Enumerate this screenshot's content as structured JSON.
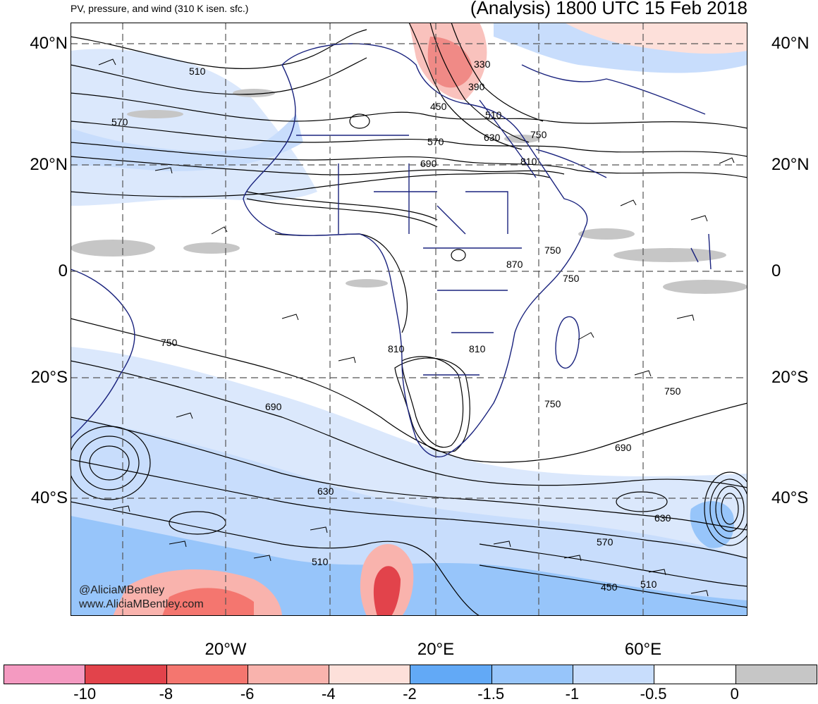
{
  "header": {
    "subtitle": "PV, pressure, and wind (310 K isen. sfc.)",
    "title": "(Analysis) 1800 UTC 15 Feb 2018"
  },
  "map": {
    "lat_labels": [
      "40°N",
      "20°N",
      "0",
      "20°S",
      "40°S"
    ],
    "lon_labels": [
      "20°W",
      "20°E",
      "60°E"
    ],
    "contour_labels": [
      "510",
      "570",
      "330",
      "390",
      "450",
      "510",
      "570",
      "630",
      "750",
      "690",
      "810",
      "750",
      "870",
      "750",
      "750",
      "810",
      "810",
      "690",
      "750",
      "750",
      "690",
      "630",
      "630",
      "570",
      "510",
      "450",
      "510"
    ],
    "credit": [
      "@AliciaMBentley",
      "www.AliciaMBentley.com"
    ]
  },
  "colorbar": {
    "colors": [
      "#f49ac1",
      "#e2434b",
      "#f4766f",
      "#f9b3ad",
      "#fde0da",
      "#62a9f6",
      "#97c5fa",
      "#c8ddfc",
      "#ffffff",
      "#c6c6c6"
    ],
    "labels": [
      "-10",
      "-8",
      "-6",
      "-4",
      "-2",
      "-1.5",
      "-1",
      "-0.5",
      "0"
    ]
  }
}
